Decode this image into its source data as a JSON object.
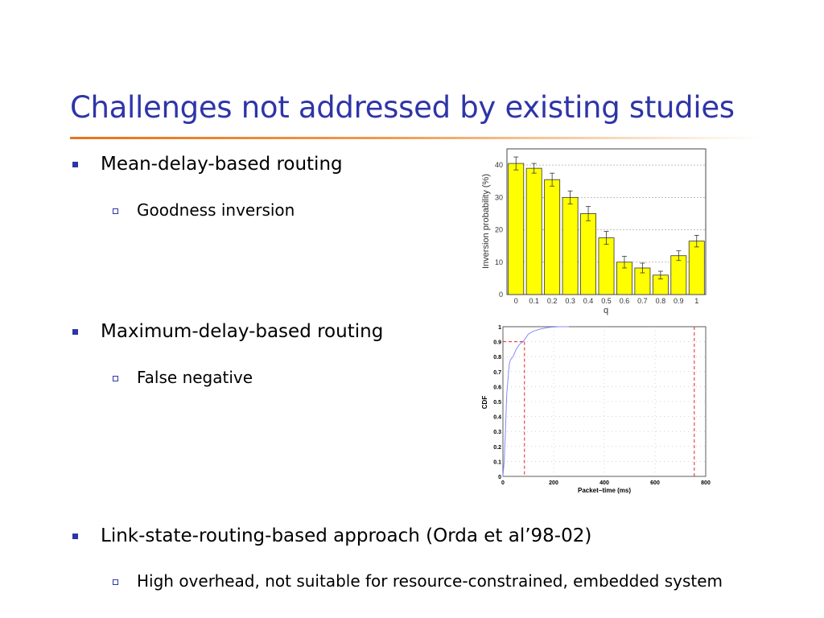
{
  "slide": {
    "title": "Challenges not addressed by existing studies",
    "bullets": [
      {
        "text": "Mean-delay-based routing",
        "sub": "Goodness inversion"
      },
      {
        "text": "Maximum-delay-based routing",
        "sub": "False negative"
      },
      {
        "text": "Link-state-routing-based approach (Orda et al’98-02)",
        "sub": "High overhead, not suitable for resource-constrained, embedded system"
      }
    ]
  },
  "colors": {
    "title": "#2e35a8",
    "rule": "#e8731a",
    "bar_fill": "#ffff00",
    "cdf_line": "#8a8aff",
    "marker_line": "#e0262a"
  },
  "chart_data": [
    {
      "type": "bar",
      "categories": [
        "0",
        "0.1",
        "0.2",
        "0.3",
        "0.4",
        "0.5",
        "0.6",
        "0.7",
        "0.8",
        "0.9",
        "1"
      ],
      "values": [
        40.5,
        39,
        35.5,
        30,
        25,
        17.5,
        10,
        8.2,
        6,
        12,
        16.5
      ],
      "errors": [
        2,
        1.5,
        2,
        2,
        2.2,
        2,
        1.8,
        1.5,
        1.2,
        1.5,
        1.8
      ],
      "xlabel": "q",
      "ylabel": "Inversion probability (%)",
      "ylim": [
        0,
        45
      ],
      "yticks": [
        0,
        10,
        20,
        30,
        40
      ],
      "grid": true
    },
    {
      "type": "line",
      "series": [
        {
          "x": [
            0,
            5,
            10,
            15,
            20,
            25,
            30,
            40,
            50,
            60,
            70,
            80,
            100,
            120,
            150,
            180,
            220,
            260
          ],
          "y": [
            0,
            0.1,
            0.3,
            0.55,
            0.65,
            0.75,
            0.78,
            0.8,
            0.84,
            0.87,
            0.89,
            0.9,
            0.95,
            0.97,
            0.985,
            0.995,
            1.0,
            1.0
          ]
        }
      ],
      "markers": {
        "x_low": 85,
        "x_high": 755,
        "y_level": 0.9
      },
      "xlabel": "Packet−time (ms)",
      "ylabel": "CDF",
      "xlim": [
        0,
        800
      ],
      "ylim": [
        0,
        1
      ],
      "xticks": [
        0,
        200,
        400,
        600,
        800
      ],
      "yticks": [
        "0",
        "0.1",
        "0.2",
        "0.3",
        "0.4",
        "0.5",
        "0.6",
        "0.7",
        "0.8",
        "0.9",
        "1"
      ],
      "grid": true
    }
  ]
}
